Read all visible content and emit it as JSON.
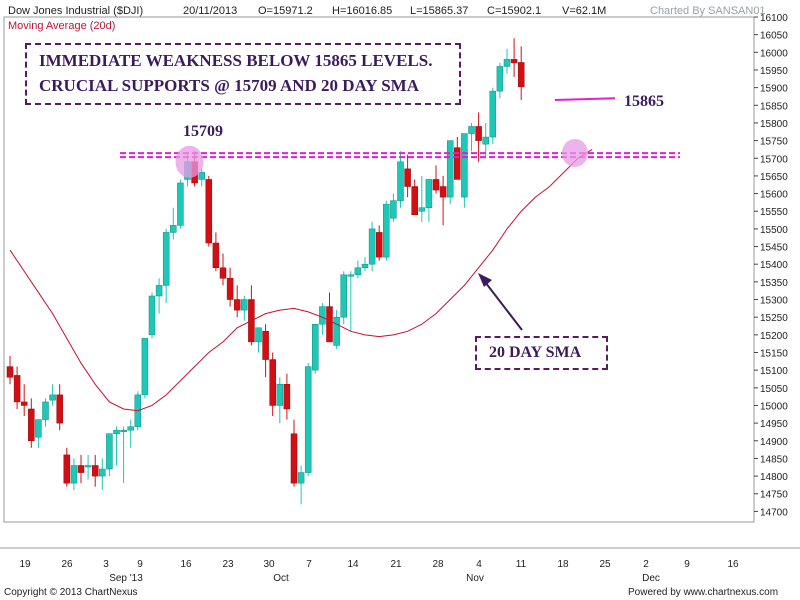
{
  "header": {
    "title": "Dow Jones Industrial ($DJI)",
    "date": "20/11/2013",
    "open": "O=15971.2",
    "high": "H=16016.85",
    "low": "L=15865.37",
    "close": "C=15902.1",
    "volume": "V=62.1M",
    "charted_by": "Charted By SANSAN01",
    "subtitle": "Moving Average (20d)"
  },
  "annotations": {
    "box_line1": "IMMEDIATE WEAKNESS BELOW 15865 LEVELS.",
    "box_line2": "CRUCIAL SUPPORTS @ 15709 AND 20 DAY SMA",
    "label_15709": "15709",
    "label_15865": "15865",
    "sma_label": "20 DAY SMA"
  },
  "footer": {
    "copyright": "Copyright © 2013 ChartNexus",
    "powered": "Powered by www.chartnexus.com"
  },
  "colors": {
    "up": "#1fc7b6",
    "down": "#d40f14",
    "sma": "#c8102e",
    "support": "#e020d0",
    "highlight": "#e79ae6"
  },
  "chart_data": {
    "type": "candlestick",
    "title": "Dow Jones Industrial ($DJI)",
    "ylim": [
      14670,
      16100
    ],
    "y_ticks": [
      16100,
      16050,
      16000,
      15950,
      15900,
      15850,
      15800,
      15750,
      15700,
      15650,
      15600,
      15550,
      15500,
      15450,
      15400,
      15350,
      15300,
      15250,
      15200,
      15150,
      15100,
      15050,
      15000,
      14950,
      14900,
      14850,
      14800,
      14750,
      14700
    ],
    "x_ticks": [
      "19",
      "26",
      "3",
      "9",
      "16",
      "23",
      "30",
      "7",
      "14",
      "21",
      "28",
      "4",
      "11",
      "18",
      "25",
      "2",
      "9",
      "16"
    ],
    "month_labels": [
      "Sep '13",
      "Oct",
      "Nov",
      "Dec"
    ],
    "candles": [
      {
        "o": 15110,
        "h": 15140,
        "l": 15060,
        "c": 15080
      },
      {
        "o": 15085,
        "h": 15110,
        "l": 14990,
        "c": 15010
      },
      {
        "o": 15010,
        "h": 15060,
        "l": 14970,
        "c": 15000
      },
      {
        "o": 14990,
        "h": 15020,
        "l": 14880,
        "c": 14900
      },
      {
        "o": 14910,
        "h": 14960,
        "l": 14880,
        "c": 14960
      },
      {
        "o": 14960,
        "h": 15020,
        "l": 14940,
        "c": 15010
      },
      {
        "o": 15015,
        "h": 15060,
        "l": 15000,
        "c": 15030
      },
      {
        "o": 15030,
        "h": 15060,
        "l": 14930,
        "c": 14950
      },
      {
        "o": 14860,
        "h": 14880,
        "l": 14770,
        "c": 14780
      },
      {
        "o": 14780,
        "h": 14850,
        "l": 14760,
        "c": 14830
      },
      {
        "o": 14830,
        "h": 14860,
        "l": 14780,
        "c": 14810
      },
      {
        "o": 14830,
        "h": 14860,
        "l": 14790,
        "c": 14830
      },
      {
        "o": 14830,
        "h": 14860,
        "l": 14770,
        "c": 14800
      },
      {
        "o": 14800,
        "h": 14850,
        "l": 14760,
        "c": 14820
      },
      {
        "o": 14820,
        "h": 14920,
        "l": 14800,
        "c": 14920
      },
      {
        "o": 14920,
        "h": 14940,
        "l": 14830,
        "c": 14930
      },
      {
        "o": 14930,
        "h": 14940,
        "l": 14780,
        "c": 14930
      },
      {
        "o": 14930,
        "h": 14960,
        "l": 14880,
        "c": 14940
      },
      {
        "o": 14940,
        "h": 15040,
        "l": 14930,
        "c": 15030
      },
      {
        "o": 15030,
        "h": 15190,
        "l": 15020,
        "c": 15190
      },
      {
        "o": 15200,
        "h": 15320,
        "l": 15190,
        "c": 15310
      },
      {
        "o": 15310,
        "h": 15360,
        "l": 15260,
        "c": 15340
      },
      {
        "o": 15340,
        "h": 15500,
        "l": 15290,
        "c": 15490
      },
      {
        "o": 15490,
        "h": 15560,
        "l": 15470,
        "c": 15510
      },
      {
        "o": 15510,
        "h": 15640,
        "l": 15500,
        "c": 15630
      },
      {
        "o": 15640,
        "h": 15710,
        "l": 15620,
        "c": 15690
      },
      {
        "o": 15690,
        "h": 15720,
        "l": 15620,
        "c": 15630
      },
      {
        "o": 15640,
        "h": 15670,
        "l": 15620,
        "c": 15660
      },
      {
        "o": 15640,
        "h": 15650,
        "l": 15450,
        "c": 15460
      },
      {
        "o": 15460,
        "h": 15490,
        "l": 15380,
        "c": 15390
      },
      {
        "o": 15390,
        "h": 15430,
        "l": 15340,
        "c": 15360
      },
      {
        "o": 15360,
        "h": 15390,
        "l": 15280,
        "c": 15300
      },
      {
        "o": 15300,
        "h": 15340,
        "l": 15250,
        "c": 15270
      },
      {
        "o": 15270,
        "h": 15310,
        "l": 15240,
        "c": 15300
      },
      {
        "o": 15300,
        "h": 15340,
        "l": 15170,
        "c": 15180
      },
      {
        "o": 15180,
        "h": 15220,
        "l": 15150,
        "c": 15220
      },
      {
        "o": 15210,
        "h": 15230,
        "l": 15080,
        "c": 15130
      },
      {
        "o": 15130,
        "h": 15150,
        "l": 14970,
        "c": 15000
      },
      {
        "o": 15000,
        "h": 15080,
        "l": 14950,
        "c": 15060
      },
      {
        "o": 15060,
        "h": 15090,
        "l": 14960,
        "c": 14990
      },
      {
        "o": 14920,
        "h": 14960,
        "l": 14770,
        "c": 14780
      },
      {
        "o": 14780,
        "h": 14830,
        "l": 14720,
        "c": 14810
      },
      {
        "o": 14810,
        "h": 15120,
        "l": 14800,
        "c": 15110
      },
      {
        "o": 15100,
        "h": 15230,
        "l": 15090,
        "c": 15230
      },
      {
        "o": 15230,
        "h": 15290,
        "l": 15200,
        "c": 15280
      },
      {
        "o": 15280,
        "h": 15320,
        "l": 15180,
        "c": 15180
      },
      {
        "o": 15170,
        "h": 15270,
        "l": 15160,
        "c": 15250
      },
      {
        "o": 15250,
        "h": 15380,
        "l": 15230,
        "c": 15370
      },
      {
        "o": 15370,
        "h": 15380,
        "l": 15210,
        "c": 15370
      },
      {
        "o": 15370,
        "h": 15410,
        "l": 15360,
        "c": 15390
      },
      {
        "o": 15390,
        "h": 15420,
        "l": 15380,
        "c": 15400
      },
      {
        "o": 15400,
        "h": 15520,
        "l": 15380,
        "c": 15500
      },
      {
        "o": 15490,
        "h": 15510,
        "l": 15410,
        "c": 15420
      },
      {
        "o": 15420,
        "h": 15580,
        "l": 15410,
        "c": 15570
      },
      {
        "o": 15530,
        "h": 15600,
        "l": 15520,
        "c": 15580
      },
      {
        "o": 15580,
        "h": 15720,
        "l": 15560,
        "c": 15690
      },
      {
        "o": 15670,
        "h": 15710,
        "l": 15590,
        "c": 15620
      },
      {
        "o": 15620,
        "h": 15640,
        "l": 15540,
        "c": 15540
      },
      {
        "o": 15550,
        "h": 15650,
        "l": 15520,
        "c": 15560
      },
      {
        "o": 15560,
        "h": 15640,
        "l": 15520,
        "c": 15640
      },
      {
        "o": 15640,
        "h": 15680,
        "l": 15600,
        "c": 15610
      },
      {
        "o": 15620,
        "h": 15650,
        "l": 15510,
        "c": 15590
      },
      {
        "o": 15590,
        "h": 15750,
        "l": 15570,
        "c": 15750
      },
      {
        "o": 15730,
        "h": 15760,
        "l": 15640,
        "c": 15640
      },
      {
        "o": 15590,
        "h": 15770,
        "l": 15560,
        "c": 15770
      },
      {
        "o": 15770,
        "h": 15800,
        "l": 15720,
        "c": 15790
      },
      {
        "o": 15790,
        "h": 15830,
        "l": 15690,
        "c": 15750
      },
      {
        "o": 15740,
        "h": 15800,
        "l": 15700,
        "c": 15760
      },
      {
        "o": 15760,
        "h": 15900,
        "l": 15740,
        "c": 15890
      },
      {
        "o": 15890,
        "h": 15970,
        "l": 15870,
        "c": 15960
      },
      {
        "o": 15960,
        "h": 16010,
        "l": 15940,
        "c": 15980
      },
      {
        "o": 15980,
        "h": 16040,
        "l": 15930,
        "c": 15970
      },
      {
        "o": 15971.2,
        "h": 16016.85,
        "l": 15865.37,
        "c": 15902.1
      }
    ],
    "sma_20": [
      15440,
      15380,
      15320,
      15260,
      15190,
      15120,
      15060,
      15010,
      14990,
      14985,
      15000,
      15030,
      15070,
      15110,
      15150,
      15180,
      15220,
      15240,
      15260,
      15270,
      15275,
      15265,
      15250,
      15230,
      15210,
      15200,
      15195,
      15200,
      15210,
      15230,
      15260,
      15300,
      15340,
      15390,
      15440,
      15500,
      15550,
      15590,
      15620,
      15660,
      15700,
      15725
    ],
    "sma_start_index": 0,
    "sma_x_trading_days": [
      0,
      2,
      4,
      6,
      8,
      10,
      12,
      14,
      16,
      18,
      20,
      22,
      24,
      26,
      28,
      30,
      32,
      34,
      36,
      38,
      40,
      42,
      44,
      46,
      48,
      50,
      52,
      54,
      56,
      58,
      60,
      62,
      64,
      66,
      68,
      70,
      72,
      74,
      76,
      78,
      80,
      82
    ],
    "support_level": 15709,
    "resistance_mark": 15865
  }
}
